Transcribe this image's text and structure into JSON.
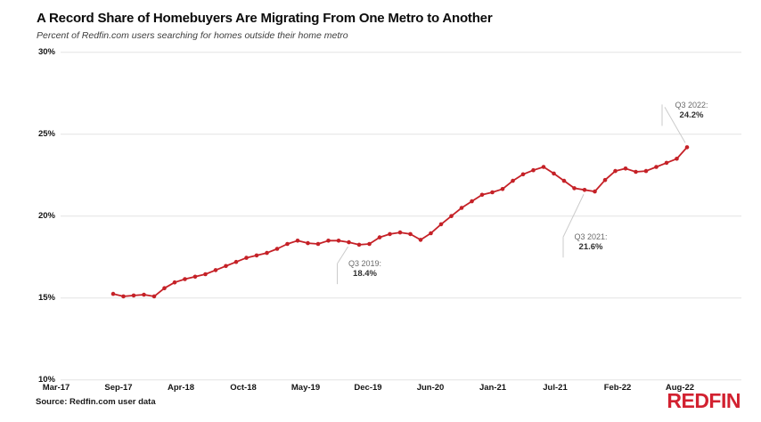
{
  "header": {
    "title": "A Record Share of Homebuyers Are Migrating From One Metro to Another",
    "subtitle": "Percent of Redfin.com users searching for homes outside their home metro"
  },
  "chart_data": {
    "type": "line",
    "title": "A Record Share of Homebuyers Are Migrating From One Metro to Another",
    "subtitle": "Percent of Redfin.com users searching for homes outside their home metro",
    "series_name": "Share of homebuyers searching outside their home metro (%)",
    "values": [
      15.25,
      15.1,
      15.15,
      15.2,
      15.1,
      15.6,
      15.95,
      16.15,
      16.3,
      16.45,
      16.7,
      16.95,
      17.2,
      17.45,
      17.6,
      17.75,
      18.0,
      18.3,
      18.5,
      18.35,
      18.3,
      18.5,
      18.5,
      18.4,
      18.25,
      18.3,
      18.7,
      18.9,
      19.0,
      18.9,
      18.55,
      18.95,
      19.5,
      20.0,
      20.5,
      20.9,
      21.3,
      21.45,
      21.65,
      22.15,
      22.55,
      22.8,
      23.0,
      22.6,
      22.15,
      21.7,
      21.6,
      21.5,
      22.2,
      22.75,
      22.9,
      22.7,
      22.75,
      23.0,
      23.25,
      23.5,
      24.2
    ],
    "x_tick_labels": [
      "Mar-17",
      "Sep-17",
      "Apr-18",
      "Oct-18",
      "May-19",
      "Dec-19",
      "Jun-20",
      "Jan-21",
      "Jul-21",
      "Feb-22",
      "Aug-22"
    ],
    "y_tick_labels": [
      "30%",
      "25%",
      "20%",
      "15%",
      "10%"
    ],
    "ylim": [
      10,
      30
    ],
    "y_tick_step": 5,
    "grid": "horizontal",
    "legend": "none",
    "annotations": [
      {
        "quarter": "Q3 2019:",
        "value": "18.4%",
        "point_index": 23
      },
      {
        "quarter": "Q3 2021:",
        "value": "21.6%",
        "point_index": 46
      },
      {
        "quarter": "Q3 2022:",
        "value": "24.2%",
        "point_index": 56
      }
    ]
  },
  "footer": {
    "source": "Source: Redfin.com user data",
    "logo": "REDFIN"
  },
  "colors": {
    "line": "#c52127",
    "logo_red": "#d22130",
    "gridline": "#e3e3e3",
    "leader": "#cbcbcb",
    "title_text": "#0b0b0b",
    "annotation_quarter": "#6b6b6b",
    "annotation_value": "#303030"
  }
}
